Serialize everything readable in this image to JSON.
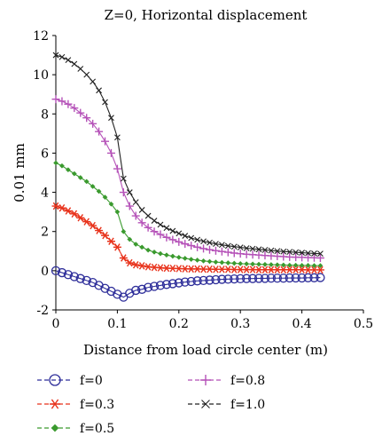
{
  "chart_data": {
    "type": "line",
    "title": "Z=0, Horizontal displacement",
    "xlabel": "Distance from load circle center (m)",
    "ylabel": "0.01 mm",
    "xlim": [
      0,
      0.5
    ],
    "ylim": [
      -2,
      12
    ],
    "xticks": [
      0,
      0.1,
      0.2,
      0.3,
      0.4,
      0.5
    ],
    "xtick_labels": [
      "0",
      "0.1",
      "0.2",
      "0.3",
      "0.4",
      "0.5"
    ],
    "yticks": [
      -2,
      0,
      2,
      4,
      6,
      8,
      10,
      12
    ],
    "ytick_labels": [
      "-2",
      "0",
      "2",
      "4",
      "6",
      "8",
      "10",
      "12"
    ],
    "grid": false,
    "legend_position": "bottom",
    "x": [
      0,
      0.01,
      0.02,
      0.03,
      0.04,
      0.05,
      0.06,
      0.07,
      0.08,
      0.09,
      0.1,
      0.11,
      0.12,
      0.13,
      0.14,
      0.15,
      0.16,
      0.17,
      0.18,
      0.19,
      0.2,
      0.21,
      0.22,
      0.23,
      0.24,
      0.25,
      0.26,
      0.27,
      0.28,
      0.29,
      0.3,
      0.31,
      0.32,
      0.33,
      0.34,
      0.35,
      0.36,
      0.37,
      0.38,
      0.39,
      0.4,
      0.41,
      0.42,
      0.43
    ],
    "series": [
      {
        "name": "f=0",
        "color": "#2e2e9a",
        "marker": "circle",
        "values": [
          0,
          -0.1,
          -0.2,
          -0.3,
          -0.4,
          -0.5,
          -0.6,
          -0.75,
          -0.9,
          -1.05,
          -1.2,
          -1.35,
          -1.15,
          -1.0,
          -0.95,
          -0.85,
          -0.8,
          -0.75,
          -0.7,
          -0.66,
          -0.62,
          -0.58,
          -0.55,
          -0.52,
          -0.5,
          -0.48,
          -0.46,
          -0.44,
          -0.43,
          -0.42,
          -0.41,
          -0.4,
          -0.4,
          -0.39,
          -0.39,
          -0.38,
          -0.38,
          -0.38,
          -0.37,
          -0.37,
          -0.37,
          -0.36,
          -0.36,
          -0.35
        ]
      },
      {
        "name": "f=0.3",
        "color": "#e8331c",
        "marker": "asterisk",
        "values": [
          3.3,
          3.2,
          3.05,
          2.9,
          2.7,
          2.5,
          2.3,
          2.05,
          1.8,
          1.5,
          1.2,
          0.65,
          0.4,
          0.3,
          0.25,
          0.2,
          0.17,
          0.15,
          0.13,
          0.12,
          0.11,
          0.1,
          0.09,
          0.09,
          0.08,
          0.08,
          0.07,
          0.07,
          0.07,
          0.06,
          0.06,
          0.06,
          0.06,
          0.05,
          0.05,
          0.05,
          0.05,
          0.05,
          0.05,
          0.05,
          0.05,
          0.04,
          0.04,
          0.04
        ]
      },
      {
        "name": "f=0.5",
        "color": "#3a9a2e",
        "marker": "diamond",
        "values": [
          5.5,
          5.35,
          5.15,
          4.95,
          4.75,
          4.55,
          4.3,
          4.05,
          3.75,
          3.4,
          3.0,
          2.0,
          1.6,
          1.35,
          1.2,
          1.05,
          0.95,
          0.87,
          0.8,
          0.74,
          0.68,
          0.63,
          0.58,
          0.54,
          0.5,
          0.47,
          0.44,
          0.42,
          0.4,
          0.38,
          0.36,
          0.35,
          0.34,
          0.33,
          0.32,
          0.31,
          0.3,
          0.29,
          0.28,
          0.28,
          0.27,
          0.27,
          0.26,
          0.26
        ]
      },
      {
        "name": "f=0.8",
        "color": "#b552b8",
        "marker": "plus",
        "values": [
          8.75,
          8.65,
          8.5,
          8.3,
          8.05,
          7.8,
          7.5,
          7.1,
          6.6,
          6.0,
          5.2,
          4.0,
          3.3,
          2.8,
          2.45,
          2.2,
          2.0,
          1.85,
          1.7,
          1.58,
          1.47,
          1.37,
          1.28,
          1.2,
          1.13,
          1.07,
          1.02,
          0.98,
          0.94,
          0.9,
          0.87,
          0.84,
          0.82,
          0.8,
          0.78,
          0.76,
          0.74,
          0.72,
          0.7,
          0.69,
          0.68,
          0.67,
          0.66,
          0.65
        ]
      },
      {
        "name": "f=1.0",
        "color": "#222222",
        "marker": "x",
        "values": [
          11.0,
          10.9,
          10.75,
          10.55,
          10.3,
          10.0,
          9.65,
          9.2,
          8.6,
          7.8,
          6.8,
          4.7,
          4.0,
          3.5,
          3.1,
          2.8,
          2.55,
          2.35,
          2.18,
          2.03,
          1.9,
          1.78,
          1.67,
          1.58,
          1.5,
          1.43,
          1.37,
          1.32,
          1.27,
          1.23,
          1.19,
          1.15,
          1.12,
          1.09,
          1.06,
          1.03,
          1.0,
          0.98,
          0.96,
          0.94,
          0.92,
          0.9,
          0.88,
          0.87
        ]
      }
    ]
  }
}
